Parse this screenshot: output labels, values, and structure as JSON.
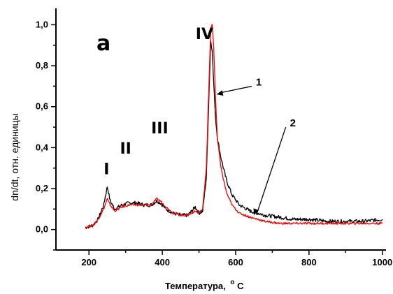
{
  "chart_data": {
    "type": "line",
    "title": "",
    "panel_letter": "a",
    "xlabel": "Температура, °С",
    "xlabel_main": "Температура,",
    "xlabel_unit_sup": "o",
    "xlabel_unit": "C",
    "ylabel": "dn/dt, отн. единицы",
    "xlim": [
      110,
      1010
    ],
    "ylim": [
      -0.1,
      1.08
    ],
    "x_ticks": [
      200,
      400,
      600,
      800,
      1000
    ],
    "x_tick_labels": [
      "200",
      "400",
      "600",
      "800",
      "1000"
    ],
    "y_ticks": [
      0.0,
      0.2,
      0.4,
      0.6,
      0.8,
      1.0
    ],
    "y_tick_labels": [
      "0,0",
      "0,2",
      "0,4",
      "0,6",
      "0,8",
      "1,0"
    ],
    "grid": false,
    "series": [
      {
        "name": "1",
        "color": "#000000",
        "x": [
          190,
          210,
          225,
          240,
          250,
          258,
          270,
          290,
          310,
          330,
          350,
          370,
          385,
          395,
          410,
          430,
          450,
          470,
          480,
          490,
          500,
          510,
          520,
          528,
          532,
          536,
          540,
          545,
          550,
          560,
          575,
          590,
          610,
          640,
          680,
          720,
          760,
          800,
          850,
          900,
          950,
          1000
        ],
        "y": [
          0.01,
          0.02,
          0.05,
          0.12,
          0.21,
          0.14,
          0.1,
          0.12,
          0.13,
          0.13,
          0.12,
          0.12,
          0.14,
          0.13,
          0.1,
          0.08,
          0.07,
          0.07,
          0.09,
          0.11,
          0.08,
          0.09,
          0.25,
          0.7,
          0.92,
          0.88,
          0.72,
          0.55,
          0.45,
          0.35,
          0.24,
          0.17,
          0.12,
          0.09,
          0.07,
          0.06,
          0.05,
          0.05,
          0.04,
          0.04,
          0.04,
          0.05
        ]
      },
      {
        "name": "2",
        "color": "#ff0000",
        "x": [
          190,
          210,
          225,
          240,
          250,
          258,
          270,
          290,
          310,
          330,
          350,
          370,
          385,
          395,
          410,
          430,
          450,
          470,
          480,
          490,
          500,
          510,
          520,
          528,
          532,
          536,
          540,
          545,
          550,
          560,
          575,
          590,
          610,
          640,
          680,
          720,
          760,
          800,
          850,
          900,
          950,
          1000
        ],
        "y": [
          0.01,
          0.02,
          0.05,
          0.1,
          0.15,
          0.12,
          0.09,
          0.11,
          0.12,
          0.12,
          0.12,
          0.12,
          0.15,
          0.14,
          0.11,
          0.08,
          0.07,
          0.07,
          0.08,
          0.09,
          0.08,
          0.1,
          0.3,
          0.75,
          0.98,
          1.0,
          0.9,
          0.65,
          0.45,
          0.3,
          0.18,
          0.12,
          0.08,
          0.06,
          0.04,
          0.03,
          0.03,
          0.03,
          0.03,
          0.03,
          0.03,
          0.03
        ]
      }
    ],
    "annotations": [
      {
        "text": "I",
        "x": 248,
        "y": 0.27
      },
      {
        "text": "II",
        "x": 300,
        "y": 0.37
      },
      {
        "text": "III",
        "x": 393,
        "y": 0.47
      },
      {
        "text": "IV",
        "x": 515,
        "y": 0.93
      }
    ],
    "curve_labels": [
      {
        "text": "1",
        "label_x": 655,
        "label_y": 0.72,
        "target_x": 548,
        "target_y": 0.66
      },
      {
        "text": "2",
        "label_x": 748,
        "label_y": 0.52,
        "target_x": 650,
        "target_y": 0.07
      }
    ]
  }
}
